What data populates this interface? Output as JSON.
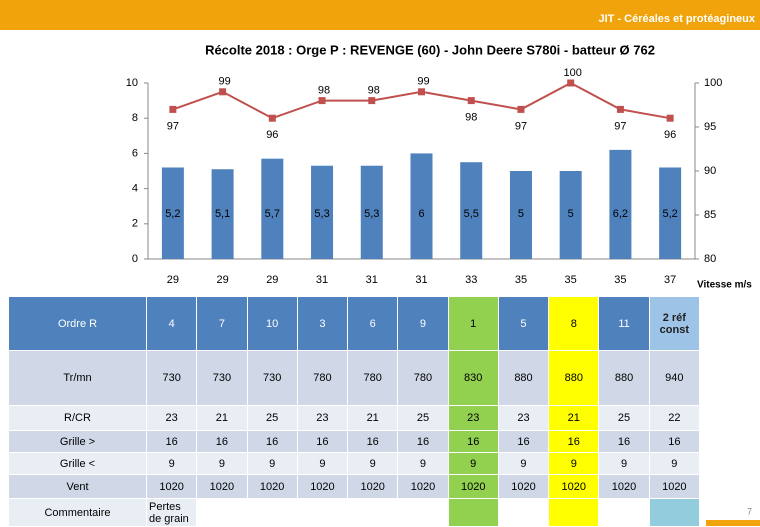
{
  "header": {
    "brand": "JIT - Céréales et protéagineux"
  },
  "chart_data": {
    "type": "bar",
    "title": "Récolte 2018 : Orge P : REVENGE (60) - John Deere S780i - batteur Ø 762",
    "x_label": "Vitesse m/s",
    "categories": [
      "29",
      "29",
      "29",
      "31",
      "31",
      "31",
      "33",
      "35",
      "35",
      "35",
      "37"
    ],
    "series": [
      {
        "color": "#4f81bd",
        "values": [
          5.2,
          5.1,
          5.7,
          5.3,
          5.3,
          6,
          5.5,
          5,
          5,
          6.2,
          5.2
        ],
        "value_labels": [
          "5,2",
          "5,1",
          "5,7",
          "5,3",
          "5,3",
          "6",
          "5,5",
          "5",
          "5",
          "6,2",
          "5,2"
        ]
      },
      {
        "type": "line",
        "axis": "y2",
        "color": "#c0504d",
        "values": [
          97,
          99,
          96,
          98,
          98,
          99,
          98,
          97,
          100,
          97,
          96
        ]
      }
    ],
    "ylim": [
      0,
      10
    ],
    "yticks": [
      0,
      2,
      4,
      6,
      8,
      10
    ],
    "y2lim": [
      80,
      100
    ],
    "y2ticks": [
      80,
      85,
      90,
      95,
      100
    ]
  },
  "table": {
    "header": [
      "Ordre R",
      "4",
      "7",
      "10",
      "3",
      "6",
      "9",
      "1",
      "5",
      "8",
      "11",
      "2 réf const"
    ],
    "rows": [
      [
        "Tr/mn",
        "730",
        "730",
        "730",
        "780",
        "780",
        "780",
        "830",
        "880",
        "880",
        "880",
        "940"
      ],
      [
        "R/CR",
        "23",
        "21",
        "25",
        "23",
        "21",
        "25",
        "23",
        "23",
        "21",
        "25",
        "22"
      ],
      [
        "Grille >",
        "16",
        "16",
        "16",
        "16",
        "16",
        "16",
        "16",
        "16",
        "16",
        "16",
        "16"
      ],
      [
        "Grille <",
        "9",
        "9",
        "9",
        "9",
        "9",
        "9",
        "9",
        "9",
        "9",
        "9",
        "9"
      ],
      [
        "Vent",
        "1020",
        "1020",
        "1020",
        "1020",
        "1020",
        "1020",
        "1020",
        "1020",
        "1020",
        "1020",
        "1020"
      ],
      [
        "Commentaire",
        "Pertes de grain"
      ]
    ]
  },
  "page_number": "7"
}
